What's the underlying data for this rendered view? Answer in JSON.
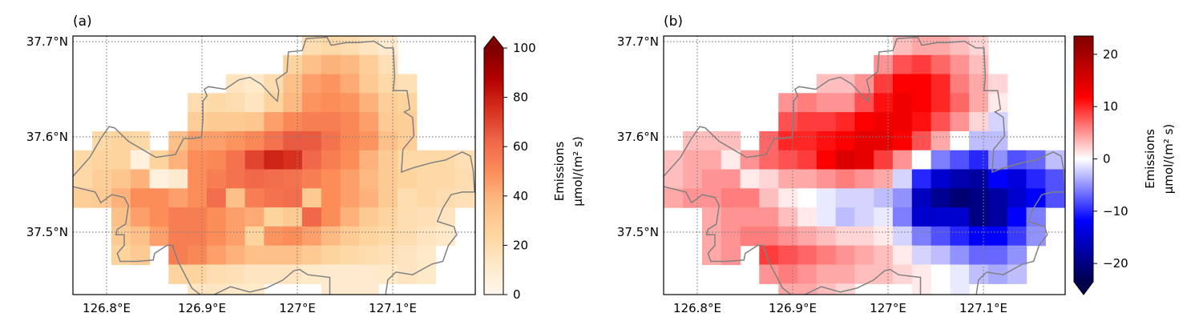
{
  "chart_data": [
    {
      "type": "heatmap",
      "panel_label": "(a)",
      "colormap": "OrRd",
      "colorbar": {
        "range": [
          0,
          100
        ],
        "extend": "max",
        "ticks": [
          0,
          20,
          40,
          60,
          80,
          100
        ],
        "tick_labels": [
          "0",
          "20",
          "40",
          "60",
          "80",
          "100"
        ],
        "label_line1": "Emissions",
        "label_line2": "μmol/(m² s)"
      },
      "x_ticks": [
        126.8,
        126.9,
        127.0,
        127.1
      ],
      "x_tick_labels": [
        "126.8°E",
        "126.9°E",
        "127°E",
        "127.1°E"
      ],
      "y_ticks": [
        37.7,
        37.6,
        37.5
      ],
      "y_tick_labels": [
        "37.7°N",
        "37.6°N",
        "37.5°N"
      ],
      "xlim": [
        126.765,
        127.187
      ],
      "ylim": [
        37.435,
        37.706
      ],
      "grid": true,
      "grid_origin_lon": 126.765,
      "grid_origin_lat_top": 37.706,
      "cell_deg": 0.02,
      "values": [
        [
          null,
          null,
          null,
          null,
          null,
          null,
          null,
          null,
          null,
          null,
          null,
          null,
          20,
          22,
          20,
          15,
          10,
          null,
          null,
          null,
          null
        ],
        [
          null,
          null,
          null,
          null,
          null,
          null,
          null,
          null,
          null,
          null,
          null,
          25,
          35,
          40,
          38,
          28,
          18,
          null,
          null,
          null,
          null
        ],
        [
          null,
          null,
          null,
          null,
          null,
          null,
          null,
          null,
          15,
          12,
          20,
          35,
          45,
          48,
          42,
          30,
          22,
          18,
          null,
          null,
          null
        ],
        [
          null,
          null,
          null,
          null,
          null,
          null,
          20,
          22,
          20,
          15,
          25,
          38,
          48,
          50,
          48,
          40,
          28,
          25,
          null,
          null,
          null
        ],
        [
          null,
          null,
          null,
          null,
          null,
          null,
          28,
          30,
          30,
          32,
          45,
          52,
          55,
          55,
          52,
          45,
          30,
          28,
          null,
          null,
          null
        ],
        [
          null,
          22,
          25,
          22,
          null,
          35,
          45,
          45,
          48,
          52,
          58,
          65,
          65,
          58,
          52,
          48,
          35,
          28,
          null,
          null,
          null
        ],
        [
          22,
          25,
          25,
          5,
          25,
          40,
          50,
          52,
          58,
          70,
          78,
          75,
          62,
          55,
          50,
          40,
          30,
          22,
          22,
          22,
          18
        ],
        [
          22,
          28,
          32,
          40,
          5,
          10,
          50,
          55,
          58,
          62,
          60,
          58,
          55,
          50,
          45,
          38,
          30,
          25,
          22,
          22,
          20
        ],
        [
          28,
          30,
          40,
          50,
          50,
          45,
          50,
          60,
          35,
          55,
          58,
          60,
          30,
          50,
          45,
          40,
          30,
          20,
          22,
          20,
          18
        ],
        [
          null,
          null,
          35,
          45,
          50,
          55,
          55,
          50,
          45,
          42,
          25,
          30,
          62,
          50,
          40,
          30,
          25,
          20,
          18,
          15,
          null
        ],
        [
          null,
          null,
          30,
          35,
          45,
          55,
          55,
          50,
          45,
          25,
          48,
          50,
          45,
          38,
          30,
          25,
          22,
          20,
          15,
          12,
          null
        ],
        [
          null,
          null,
          25,
          30,
          null,
          55,
          52,
          45,
          40,
          35,
          35,
          35,
          30,
          25,
          22,
          20,
          18,
          15,
          12,
          null,
          null
        ],
        [
          null,
          null,
          null,
          null,
          null,
          25,
          25,
          20,
          18,
          15,
          15,
          15,
          12,
          10,
          10,
          10,
          12,
          15,
          12,
          null,
          null
        ],
        [
          null,
          null,
          null,
          null,
          null,
          null,
          15,
          15,
          12,
          12,
          null,
          null,
          null,
          10,
          10,
          10,
          null,
          null,
          null,
          null,
          null
        ]
      ]
    },
    {
      "type": "heatmap",
      "panel_label": "(b)",
      "colormap": "seismic",
      "colorbar": {
        "range": [
          -23.5,
          23.5
        ],
        "extend": "min",
        "ticks": [
          -20,
          -10,
          0,
          10,
          20
        ],
        "tick_labels": [
          "−20",
          "−10",
          "0",
          "10",
          "20"
        ],
        "label_line1": "Emissions",
        "label_line2": "μmol/(m² s)"
      },
      "x_ticks": [
        126.8,
        126.9,
        127.0,
        127.1
      ],
      "x_tick_labels": [
        "126.8°E",
        "126.9°E",
        "127°E",
        "127.1°E"
      ],
      "y_ticks": [
        37.7,
        37.6,
        37.5
      ],
      "y_tick_labels": [
        "37.7°N",
        "37.6°N",
        "37.5°N"
      ],
      "xlim": [
        126.765,
        127.187
      ],
      "ylim": [
        37.435,
        37.706
      ],
      "grid": true,
      "grid_origin_lon": 126.765,
      "grid_origin_lat_top": 37.706,
      "cell_deg": 0.02,
      "values": [
        [
          null,
          null,
          null,
          null,
          null,
          null,
          null,
          null,
          null,
          null,
          null,
          null,
          3,
          4,
          4,
          3,
          2,
          null,
          null,
          null,
          null
        ],
        [
          null,
          null,
          null,
          null,
          null,
          null,
          null,
          null,
          null,
          null,
          null,
          5,
          8,
          9,
          7,
          5,
          3,
          null,
          null,
          null,
          null
        ],
        [
          null,
          null,
          null,
          null,
          null,
          null,
          null,
          null,
          3,
          3,
          5,
          9,
          12,
          12,
          10,
          6,
          4,
          2,
          null,
          null,
          null
        ],
        [
          null,
          null,
          null,
          null,
          null,
          null,
          5,
          6,
          5,
          5,
          8,
          11,
          13,
          12,
          10,
          7,
          4,
          1,
          null,
          null,
          null
        ],
        [
          null,
          null,
          null,
          null,
          null,
          null,
          8,
          9,
          9,
          10,
          12,
          13,
          13,
          11,
          8,
          5,
          2,
          -2,
          null,
          null,
          null
        ],
        [
          null,
          3,
          3,
          3,
          null,
          7,
          10,
          10,
          11,
          12,
          14,
          14,
          12,
          8,
          4,
          0,
          -3,
          -3,
          null,
          null,
          null
        ],
        [
          3,
          4,
          4,
          1,
          5,
          7,
          8,
          9,
          12,
          15,
          14,
          9,
          5,
          0,
          -6,
          -8,
          -10,
          -5,
          -8,
          -7,
          -3
        ],
        [
          3,
          4,
          5,
          5,
          1,
          2,
          4,
          4,
          5,
          6,
          5,
          4,
          -2,
          -10,
          -15,
          -17,
          -18,
          -12,
          -14,
          -10,
          -8
        ],
        [
          4,
          5,
          5,
          6,
          6,
          3,
          1,
          0,
          -1,
          -2,
          -2,
          -3,
          -5,
          -16,
          -19,
          -21,
          -20,
          -18,
          -15,
          -12,
          -8
        ],
        [
          null,
          null,
          4,
          5,
          5,
          5,
          3,
          1,
          -1,
          -3,
          -2,
          -1,
          -6,
          -15,
          -15,
          -15,
          -20,
          -18,
          -12,
          -6,
          null
        ],
        [
          null,
          null,
          4,
          5,
          6,
          6,
          5,
          4,
          3,
          2,
          2,
          1,
          -2,
          -6,
          -8,
          -10,
          -12,
          -12,
          -9,
          -5,
          null
        ],
        [
          null,
          null,
          4,
          5,
          null,
          9,
          8,
          7,
          6,
          5,
          4,
          3,
          1,
          -2,
          -3,
          -5,
          -7,
          -7,
          -5,
          null,
          null
        ],
        [
          null,
          null,
          null,
          null,
          null,
          5,
          6,
          5,
          4,
          4,
          3,
          3,
          2,
          1,
          0,
          -1,
          -3,
          -4,
          -3,
          null,
          null
        ],
        [
          null,
          null,
          null,
          null,
          null,
          null,
          4,
          4,
          3,
          2,
          null,
          null,
          null,
          1,
          0,
          -1,
          null,
          null,
          null,
          null,
          null
        ]
      ]
    }
  ],
  "boundary_color": "#808080",
  "boundary_lonlat": [
    [
      126.755,
      37.5477
    ],
    [
      126.755,
      37.5589
    ],
    [
      126.765,
      37.5589
    ],
    [
      126.7824,
      37.5785
    ],
    [
      126.7939,
      37.5982
    ],
    [
      126.8026,
      37.6108
    ],
    [
      126.8084,
      37.6094
    ],
    [
      126.8229,
      37.5954
    ],
    [
      126.8518,
      37.5785
    ],
    [
      126.872,
      37.5814
    ],
    [
      126.8807,
      37.5982
    ],
    [
      126.8894,
      37.5982
    ],
    [
      126.8995,
      37.5996
    ],
    [
      126.901,
      37.6178
    ],
    [
      126.901,
      37.6374
    ],
    [
      126.9053,
      37.643
    ],
    [
      126.9024,
      37.65
    ],
    [
      126.9067,
      37.6528
    ],
    [
      126.9241,
      37.65
    ],
    [
      126.9386,
      37.6598
    ],
    [
      126.9501,
      37.6626
    ],
    [
      126.9617,
      37.6556
    ],
    [
      126.9733,
      37.643
    ],
    [
      126.9791,
      37.6374
    ],
    [
      126.9805,
      37.6486
    ],
    [
      126.9776,
      37.6598
    ],
    [
      126.9892,
      37.6682
    ],
    [
      126.9906,
      37.6892
    ],
    [
      127.0051,
      37.6906
    ],
    [
      127.0094,
      37.7032
    ],
    [
      127.0311,
      37.7046
    ],
    [
      127.0355,
      37.6962
    ],
    [
      127.0514,
      37.699
    ],
    [
      127.0629,
      37.699
    ],
    [
      127.0803,
      37.7004
    ],
    [
      127.0919,
      37.6934
    ],
    [
      127.1006,
      37.6934
    ],
    [
      127.102,
      37.6626
    ],
    [
      127.1006,
      37.6486
    ],
    [
      127.115,
      37.6486
    ],
    [
      127.1179,
      37.629
    ],
    [
      127.1121,
      37.6262
    ],
    [
      127.1208,
      37.6206
    ],
    [
      127.1222,
      37.601
    ],
    [
      127.1107,
      37.587
    ],
    [
      127.1092,
      37.5631
    ],
    [
      127.1208,
      37.5673
    ],
    [
      127.141,
      37.5729
    ],
    [
      127.1555,
      37.5757
    ],
    [
      127.1729,
      37.5842
    ],
    [
      127.1815,
      37.5799
    ],
    [
      127.1844,
      37.5645
    ],
    [
      127.1859,
      37.5421
    ],
    [
      127.1729,
      37.5421
    ],
    [
      127.1613,
      37.5393
    ],
    [
      127.1526,
      37.5253
    ],
    [
      127.1468,
      37.5113
    ],
    [
      127.1642,
      37.5057
    ],
    [
      127.1671,
      37.4973
    ],
    [
      127.1584,
      37.4861
    ],
    [
      127.1526,
      37.4693
    ],
    [
      127.141,
      37.4665
    ],
    [
      127.1208,
      37.4553
    ],
    [
      127.1034,
      37.4581
    ],
    [
      127.0948,
      37.4497
    ],
    [
      127.0919,
      37.4301
    ],
    [
      127.034,
      37.4301
    ],
    [
      127.034,
      37.4525
    ],
    [
      127.0109,
      37.4553
    ],
    [
      127.0022,
      37.4609
    ],
    [
      126.9964,
      37.4595
    ],
    [
      126.9848,
      37.4497
    ],
    [
      126.9675,
      37.4413
    ],
    [
      126.9501,
      37.4371
    ],
    [
      126.9299,
      37.4427
    ],
    [
      126.9212,
      37.4385
    ],
    [
      126.9038,
      37.4301
    ],
    [
      126.8894,
      37.4413
    ],
    [
      126.8836,
      37.4525
    ],
    [
      126.8749,
      37.4693
    ],
    [
      126.8691,
      37.4861
    ],
    [
      126.8634,
      37.4861
    ],
    [
      126.8503,
      37.4777
    ],
    [
      126.8489,
      37.4707
    ],
    [
      126.8315,
      37.4693
    ],
    [
      126.8142,
      37.4693
    ],
    [
      126.8113,
      37.4777
    ],
    [
      126.8185,
      37.4861
    ],
    [
      126.8185,
      37.4973
    ],
    [
      126.8098,
      37.4973
    ],
    [
      126.8113,
      37.5029
    ],
    [
      126.82,
      37.5085
    ],
    [
      126.8229,
      37.5281
    ],
    [
      126.8185,
      37.5365
    ],
    [
      126.8055,
      37.5393
    ],
    [
      126.7939,
      37.5309
    ],
    [
      126.7881,
      37.5421
    ],
    [
      126.7708,
      37.5463
    ],
    [
      126.765,
      37.5477
    ],
    [
      126.755,
      37.5477
    ]
  ]
}
